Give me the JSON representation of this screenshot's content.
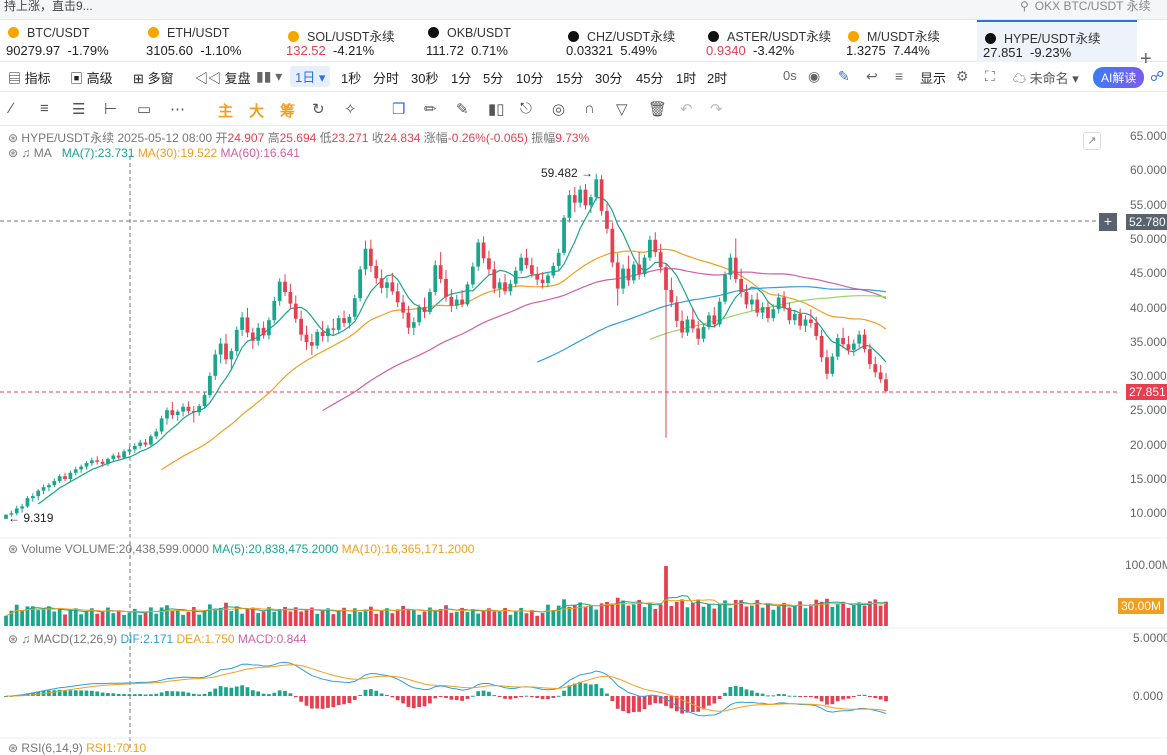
{
  "top_strip": {
    "left_text": "持上涨，直击9...",
    "search_text": "OKX BTC/USDT 永续"
  },
  "tickers": [
    {
      "symbol": "BTC/USDT",
      "price": "90279.97",
      "change": "-1.79%",
      "dir": "dn",
      "icon": "btc-coin-icon",
      "color": "#f7a600"
    },
    {
      "symbol": "ETH/USDT",
      "price": "3105.60",
      "change": "-1.10%",
      "dir": "dn",
      "icon": "eth-coin-icon",
      "color": "#f7a600"
    },
    {
      "symbol": "SOL/USDT永续",
      "price": "132.52",
      "change": "-4.21%",
      "dir": "dn",
      "icon": "sol-coin-icon",
      "color": "#f7a600"
    },
    {
      "symbol": "OKB/USDT",
      "price": "111.72",
      "change": "0.71%",
      "dir": "up",
      "icon": "okx-icon",
      "color": "#111"
    },
    {
      "symbol": "CHZ/USDT永续",
      "price": "0.03321",
      "change": "5.49%",
      "dir": "up",
      "icon": "okx-icon",
      "color": "#111"
    },
    {
      "symbol": "ASTER/USDT永续",
      "price": "0.9340",
      "change": "-3.42%",
      "dir": "dn",
      "icon": "okx-icon",
      "color": "#111"
    },
    {
      "symbol": "M/USDT永续",
      "price": "1.3275",
      "change": "7.44%",
      "dir": "up",
      "icon": "binance-icon",
      "color": "#f7a600"
    },
    {
      "symbol": "HYPE/USDT永续",
      "price": "27.851",
      "change": "-9.23%",
      "dir": "dn",
      "icon": "okx-icon",
      "color": "#111"
    }
  ],
  "toolbar": {
    "indicators": "指标",
    "advanced": "高级",
    "multi_window": "多窗",
    "replay": "复盘",
    "interval_selected": "1日",
    "intervals": [
      "1秒",
      "分时",
      "30秒",
      "1分",
      "5分",
      "10分",
      "15分",
      "30分",
      "45分",
      "1时",
      "2时"
    ],
    "countdown": "0s",
    "display": "显示",
    "layout_name": "未命名",
    "ai_button": "AI解读"
  },
  "drawing_tools": {
    "main": "主",
    "big": "大",
    "chip": "筹"
  },
  "chart": {
    "symbol": "HYPE/USDT永续",
    "date": "2025-05-12 08:00",
    "open_label": "开",
    "open": "24.907",
    "high_label": "高",
    "high": "25.694",
    "low_label": "低",
    "low": "23.271",
    "close_label": "收",
    "close": "24.834",
    "change_label": "涨幅",
    "change": "-0.26%(-0.065)",
    "amp_label": "振幅",
    "amp": "9.73%",
    "ma_title": "MA",
    "ma7": "MA(7):23.731",
    "ma30": "MA(30):19.522",
    "ma60": "MA(60):16.641",
    "y_ticks": [
      "65.0000",
      "60.0000",
      "55.0000",
      "50.0000",
      "45.0000",
      "40.0000",
      "35.0000",
      "30.0000",
      "25.0000",
      "20.0000",
      "15.0000",
      "10.0000"
    ],
    "crosshair_price": "52.780",
    "last_price": "27.851",
    "high_mark": "59.482",
    "low_mark": "9.319"
  },
  "volume": {
    "label": "Volume",
    "value": "VOLUME:20,438,599.0000",
    "ma5": "MA(5):20,838,475.2000",
    "ma10": "MA(10):16,365,171.2000",
    "y_top": "100.00M",
    "y_tag": "30.00M"
  },
  "macd": {
    "label": "MACD(12,26,9)",
    "dif": "DIF:2.171",
    "dea": "DEA:1.750",
    "macd": "MACD:0.844",
    "y_top": "5.0000",
    "y_zero": "0.000"
  },
  "rsi": {
    "label": "RSI(6,14,9)",
    "value": "RSI1:70.10"
  },
  "colors": {
    "up": "#1aa58d",
    "down": "#e5404f",
    "ma7": "#1aa58d",
    "ma30": "#f0a020",
    "ma60": "#d25fa8",
    "ma_long": "#2f9fd8",
    "ma_faint": "#9bd36a"
  },
  "chart_data": {
    "type": "candlestick",
    "title": "HYPE/USDT永续 1日",
    "ylim": [
      5,
      67
    ],
    "ohlc": [
      [
        9.3,
        9.9,
        9.3,
        9.9
      ],
      [
        9.9,
        10.5,
        9.6,
        10.1
      ],
      [
        10.1,
        11.2,
        9.8,
        10.8
      ],
      [
        10.8,
        11.5,
        10.2,
        11.1
      ],
      [
        11.1,
        12.6,
        10.9,
        12.3
      ],
      [
        12.3,
        13.0,
        11.8,
        12.6
      ],
      [
        12.6,
        13.6,
        12.0,
        13.4
      ],
      [
        13.4,
        14.3,
        12.9,
        13.9
      ],
      [
        13.9,
        14.5,
        13.3,
        14.2
      ],
      [
        14.2,
        15.2,
        13.9,
        14.8
      ],
      [
        14.8,
        15.8,
        14.5,
        15.5
      ],
      [
        15.5,
        16.0,
        14.8,
        15.1
      ],
      [
        15.1,
        16.3,
        14.6,
        16.0
      ],
      [
        16.0,
        16.9,
        15.6,
        16.5
      ],
      [
        16.5,
        17.2,
        16.0,
        16.9
      ],
      [
        16.9,
        17.7,
        16.5,
        17.4
      ],
      [
        17.4,
        18.2,
        17.0,
        17.8
      ],
      [
        17.8,
        18.4,
        17.2,
        17.6
      ],
      [
        17.6,
        18.0,
        16.9,
        17.3
      ],
      [
        17.3,
        18.2,
        17.0,
        18.0
      ],
      [
        18.0,
        18.8,
        17.6,
        18.5
      ],
      [
        18.5,
        19.0,
        17.9,
        18.2
      ],
      [
        18.2,
        19.4,
        18.0,
        19.1
      ],
      [
        19.1,
        19.8,
        18.6,
        19.4
      ],
      [
        19.4,
        20.3,
        18.9,
        19.9
      ],
      [
        19.9,
        20.8,
        19.5,
        20.4
      ],
      [
        20.4,
        20.9,
        19.8,
        20.1
      ],
      [
        20.1,
        21.6,
        19.9,
        21.3
      ],
      [
        21.3,
        22.4,
        20.9,
        22.0
      ],
      [
        22.0,
        24.3,
        21.6,
        23.9
      ],
      [
        23.9,
        25.5,
        23.0,
        25.1
      ],
      [
        25.1,
        26.3,
        23.8,
        24.4
      ],
      [
        24.4,
        25.2,
        23.6,
        24.9
      ],
      [
        24.9,
        26.1,
        24.2,
        25.6
      ],
      [
        25.6,
        26.4,
        24.6,
        25.0
      ],
      [
        25.0,
        25.7,
        23.3,
        24.8
      ],
      [
        24.8,
        26.0,
        24.3,
        25.7
      ],
      [
        25.7,
        27.8,
        25.4,
        27.3
      ],
      [
        27.3,
        30.6,
        26.9,
        30.1
      ],
      [
        30.1,
        33.9,
        29.5,
        33.2
      ],
      [
        33.2,
        35.6,
        31.9,
        34.8
      ],
      [
        34.8,
        36.2,
        31.8,
        32.5
      ],
      [
        32.5,
        34.1,
        30.9,
        33.7
      ],
      [
        33.7,
        37.3,
        33.0,
        36.8
      ],
      [
        36.8,
        39.4,
        35.9,
        38.6
      ],
      [
        38.6,
        40.0,
        35.7,
        36.4
      ],
      [
        36.4,
        37.1,
        34.0,
        35.2
      ],
      [
        35.2,
        37.8,
        34.5,
        37.1
      ],
      [
        37.1,
        38.0,
        35.5,
        36.0
      ],
      [
        36.0,
        38.6,
        35.4,
        38.2
      ],
      [
        38.2,
        41.6,
        37.7,
        41.0
      ],
      [
        41.0,
        44.3,
        40.3,
        43.8
      ],
      [
        43.8,
        44.9,
        41.7,
        42.3
      ],
      [
        42.3,
        43.5,
        39.9,
        40.6
      ],
      [
        40.6,
        41.8,
        37.8,
        38.4
      ],
      [
        38.4,
        39.6,
        35.2,
        36.1
      ],
      [
        36.1,
        37.4,
        33.9,
        35.0
      ],
      [
        35.0,
        36.2,
        33.1,
        34.5
      ],
      [
        34.5,
        36.9,
        34.0,
        36.5
      ],
      [
        36.5,
        38.1,
        35.1,
        35.9
      ],
      [
        35.9,
        37.5,
        35.0,
        37.0
      ],
      [
        37.0,
        38.4,
        36.1,
        36.8
      ],
      [
        36.8,
        38.9,
        36.3,
        38.5
      ],
      [
        38.5,
        39.6,
        37.2,
        37.8
      ],
      [
        37.8,
        39.1,
        37.0,
        38.7
      ],
      [
        38.7,
        41.9,
        38.2,
        41.4
      ],
      [
        41.4,
        46.1,
        40.9,
        45.6
      ],
      [
        45.6,
        49.8,
        44.7,
        48.6
      ],
      [
        48.6,
        49.9,
        45.2,
        46.1
      ],
      [
        46.1,
        47.0,
        43.5,
        44.3
      ],
      [
        44.3,
        45.6,
        42.1,
        42.9
      ],
      [
        42.9,
        44.4,
        41.4,
        43.7
      ],
      [
        43.7,
        45.1,
        41.9,
        42.4
      ],
      [
        42.4,
        43.6,
        40.1,
        40.8
      ],
      [
        40.8,
        41.9,
        38.4,
        39.3
      ],
      [
        39.3,
        40.3,
        36.2,
        37.1
      ],
      [
        37.1,
        38.6,
        36.0,
        37.9
      ],
      [
        37.9,
        40.5,
        37.4,
        40.1
      ],
      [
        40.1,
        41.5,
        38.5,
        39.4
      ],
      [
        39.4,
        42.8,
        39.0,
        42.3
      ],
      [
        42.3,
        46.9,
        41.8,
        46.2
      ],
      [
        46.2,
        48.1,
        43.6,
        44.2
      ],
      [
        44.2,
        45.5,
        40.9,
        41.6
      ],
      [
        41.6,
        42.7,
        39.4,
        40.3
      ],
      [
        40.3,
        41.9,
        39.8,
        41.2
      ],
      [
        41.2,
        42.6,
        40.1,
        40.5
      ],
      [
        40.5,
        43.8,
        40.2,
        43.4
      ],
      [
        43.4,
        46.6,
        42.9,
        46.0
      ],
      [
        46.0,
        50.0,
        45.4,
        49.5
      ],
      [
        49.5,
        50.4,
        46.5,
        47.2
      ],
      [
        47.2,
        48.3,
        44.7,
        45.6
      ],
      [
        45.6,
        46.8,
        42.1,
        42.8
      ],
      [
        42.8,
        44.3,
        41.5,
        43.7
      ],
      [
        43.7,
        44.9,
        41.9,
        42.4
      ],
      [
        42.4,
        44.1,
        41.8,
        43.5
      ],
      [
        43.5,
        46.0,
        43.0,
        45.4
      ],
      [
        45.4,
        47.9,
        45.0,
        47.3
      ],
      [
        47.3,
        48.6,
        45.7,
        46.2
      ],
      [
        46.2,
        47.3,
        44.4,
        44.9
      ],
      [
        44.9,
        46.0,
        43.3,
        44.1
      ],
      [
        44.1,
        45.2,
        42.8,
        43.6
      ],
      [
        43.6,
        45.1,
        43.0,
        44.7
      ],
      [
        44.7,
        46.6,
        44.3,
        46.1
      ],
      [
        46.1,
        48.6,
        45.4,
        48.0
      ],
      [
        48.0,
        53.5,
        47.6,
        53.1
      ],
      [
        53.1,
        57.1,
        52.4,
        56.4
      ],
      [
        56.4,
        57.6,
        53.9,
        55.3
      ],
      [
        55.3,
        57.8,
        54.6,
        57.2
      ],
      [
        57.2,
        58.0,
        54.3,
        54.9
      ],
      [
        54.9,
        56.5,
        53.8,
        56.1
      ],
      [
        56.1,
        59.5,
        55.6,
        58.7
      ],
      [
        58.7,
        59.3,
        53.4,
        54.1
      ],
      [
        54.1,
        55.2,
        50.8,
        51.5
      ],
      [
        51.5,
        52.4,
        45.9,
        46.6
      ],
      [
        46.6,
        47.9,
        40.3,
        42.8
      ],
      [
        42.8,
        46.3,
        42.0,
        45.7
      ],
      [
        45.7,
        47.6,
        43.2,
        44.0
      ],
      [
        44.0,
        46.8,
        43.5,
        46.3
      ],
      [
        46.3,
        48.2,
        44.1,
        44.9
      ],
      [
        44.9,
        47.7,
        44.5,
        47.3
      ],
      [
        47.3,
        50.5,
        46.8,
        49.9
      ],
      [
        49.9,
        51.0,
        47.4,
        48.1
      ],
      [
        48.1,
        49.3,
        45.1,
        45.9
      ],
      [
        45.9,
        46.4,
        21.1,
        42.6
      ],
      [
        42.6,
        44.4,
        40.1,
        40.8
      ],
      [
        40.8,
        41.7,
        37.2,
        38.1
      ],
      [
        38.1,
        39.6,
        35.6,
        36.4
      ],
      [
        36.4,
        38.8,
        35.9,
        38.3
      ],
      [
        38.3,
        39.9,
        36.4,
        37.0
      ],
      [
        37.0,
        38.1,
        34.6,
        35.5
      ],
      [
        35.5,
        37.7,
        35.0,
        37.2
      ],
      [
        37.2,
        39.4,
        36.8,
        38.9
      ],
      [
        38.9,
        40.1,
        37.1,
        37.6
      ],
      [
        37.6,
        41.5,
        37.2,
        40.9
      ],
      [
        40.9,
        45.3,
        40.5,
        44.8
      ],
      [
        44.8,
        47.9,
        44.1,
        47.3
      ],
      [
        47.3,
        50.1,
        43.6,
        44.2
      ],
      [
        44.2,
        45.7,
        41.5,
        42.3
      ],
      [
        42.3,
        43.4,
        39.9,
        40.5
      ],
      [
        40.5,
        41.9,
        39.6,
        41.2
      ],
      [
        41.2,
        42.2,
        38.7,
        39.3
      ],
      [
        39.3,
        40.8,
        38.4,
        40.1
      ],
      [
        40.1,
        41.0,
        37.9,
        38.5
      ],
      [
        38.5,
        40.5,
        38.0,
        39.8
      ],
      [
        39.8,
        42.1,
        39.2,
        41.5
      ],
      [
        41.5,
        42.4,
        39.5,
        40.0
      ],
      [
        40.0,
        40.8,
        37.6,
        38.2
      ],
      [
        38.2,
        39.7,
        37.5,
        39.1
      ],
      [
        39.1,
        39.9,
        36.8,
        37.4
      ],
      [
        37.4,
        38.9,
        36.5,
        38.3
      ],
      [
        38.3,
        39.8,
        37.1,
        37.8
      ],
      [
        37.8,
        38.7,
        35.3,
        35.9
      ],
      [
        35.9,
        36.8,
        32.1,
        32.8
      ],
      [
        32.8,
        33.9,
        29.6,
        30.4
      ],
      [
        30.4,
        33.4,
        30.0,
        32.9
      ],
      [
        32.9,
        36.2,
        32.4,
        35.6
      ],
      [
        35.6,
        37.1,
        34.1,
        34.7
      ],
      [
        34.7,
        35.9,
        33.2,
        33.9
      ],
      [
        33.9,
        35.4,
        33.0,
        34.8
      ],
      [
        34.8,
        36.7,
        34.2,
        36.1
      ],
      [
        36.1,
        36.9,
        33.5,
        34.0
      ],
      [
        34.0,
        34.8,
        31.1,
        31.8
      ],
      [
        31.8,
        32.9,
        29.9,
        30.6
      ],
      [
        30.6,
        31.7,
        29.1,
        29.6
      ],
      [
        29.6,
        30.5,
        27.7,
        27.9
      ]
    ]
  }
}
